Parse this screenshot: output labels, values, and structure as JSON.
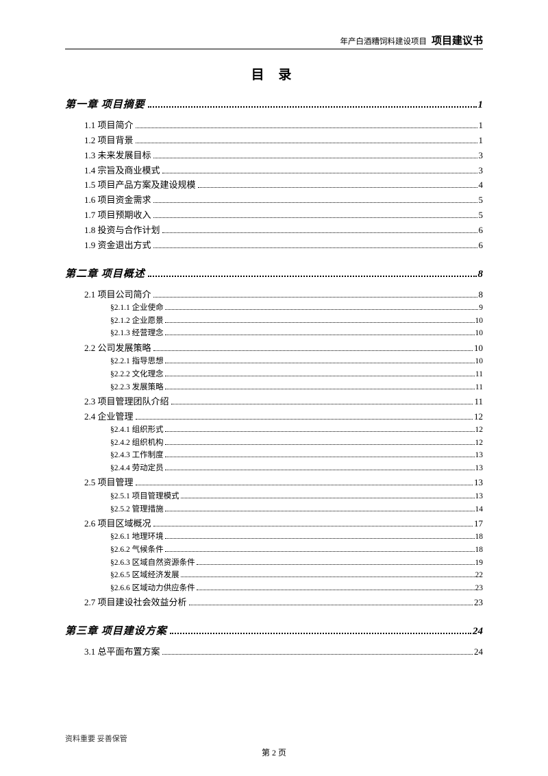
{
  "header": {
    "prefix": "年产白酒糟饲料建设项目",
    "title": "项目建议书"
  },
  "toc_title": "目 录",
  "footer": {
    "note": "资料重要  妥善保管",
    "page": "第 2 页"
  },
  "entries": [
    {
      "level": "chapter",
      "label": "第一章 项目摘要",
      "page": "1"
    },
    {
      "level": "section",
      "label": "1.1 项目简介",
      "page": "1"
    },
    {
      "level": "section",
      "label": "1.2 项目背景",
      "page": "1"
    },
    {
      "level": "section",
      "label": "1.3 未来发展目标",
      "page": "3"
    },
    {
      "level": "section",
      "label": "1.4 宗旨及商业模式",
      "page": "3"
    },
    {
      "level": "section",
      "label": "1.5 项目产品方案及建设规模",
      "page": "4"
    },
    {
      "level": "section",
      "label": "1.6 项目资金需求",
      "page": "5"
    },
    {
      "level": "section",
      "label": "1.7 项目预期收入",
      "page": "5"
    },
    {
      "level": "section",
      "label": "1.8 投资与合作计划",
      "page": "6"
    },
    {
      "level": "section",
      "label": "1.9 资金退出方式",
      "page": "6"
    },
    {
      "level": "chapter",
      "label": "第二章 项目概述",
      "page": "8"
    },
    {
      "level": "section",
      "label": "2.1 项目公司简介",
      "page": "8"
    },
    {
      "level": "subsection",
      "label": "§2.1.1 企业使命",
      "page": "9"
    },
    {
      "level": "subsection",
      "label": "§2.1.2 企业愿景",
      "page": "10"
    },
    {
      "level": "subsection",
      "label": "§2.1.3 经营理念",
      "page": "10"
    },
    {
      "level": "section",
      "label": "2.2 公司发展策略",
      "page": "10"
    },
    {
      "level": "subsection",
      "label": "§2.2.1 指导思想",
      "page": "10"
    },
    {
      "level": "subsection",
      "label": "§2.2.2 文化理念",
      "page": "11"
    },
    {
      "level": "subsection",
      "label": "§2.2.3 发展策略",
      "page": "11"
    },
    {
      "level": "section",
      "label": "2.3 项目管理团队介绍",
      "page": "11"
    },
    {
      "level": "section",
      "label": "2.4 企业管理",
      "page": "12"
    },
    {
      "level": "subsection",
      "label": "§2.4.1 组织形式",
      "page": "12"
    },
    {
      "level": "subsection",
      "label": "§2.4.2 组织机构",
      "page": "12"
    },
    {
      "level": "subsection",
      "label": "§2.4.3 工作制度",
      "page": "13"
    },
    {
      "level": "subsection",
      "label": "§2.4.4 劳动定员",
      "page": "13"
    },
    {
      "level": "section",
      "label": "2.5 项目管理",
      "page": "13"
    },
    {
      "level": "subsection",
      "label": "§2.5.1 项目管理模式",
      "page": "13"
    },
    {
      "level": "subsection",
      "label": "§2.5.2 管理措施",
      "page": "14"
    },
    {
      "level": "section",
      "label": "2.6 项目区域概况",
      "page": "17"
    },
    {
      "level": "subsection",
      "label": "§2.6.1 地理环境",
      "page": "18"
    },
    {
      "level": "subsection",
      "label": "§2.6.2 气候条件",
      "page": "18"
    },
    {
      "level": "subsection",
      "label": "§2.6.3 区域自然资源条件",
      "page": "19"
    },
    {
      "level": "subsection",
      "label": "§2.6.5 区域经济发展",
      "page": "22"
    },
    {
      "level": "subsection",
      "label": "§2.6.6 区域动力供应条件",
      "page": "23"
    },
    {
      "level": "section",
      "label": "2.7 项目建设社会效益分析",
      "page": "23"
    },
    {
      "level": "chapter",
      "label": "第三章 项目建设方案",
      "page": "24"
    },
    {
      "level": "section",
      "label": "3.1 总平面布置方案",
      "page": "24"
    }
  ]
}
